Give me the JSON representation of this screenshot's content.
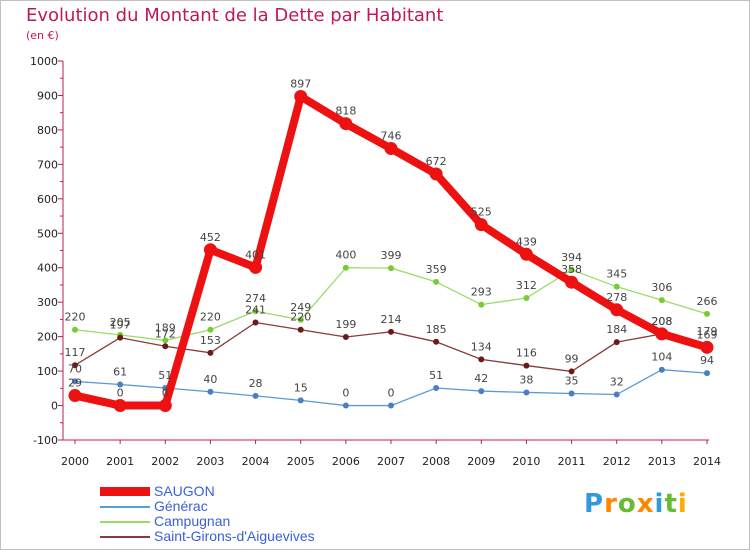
{
  "chart_data": {
    "type": "line",
    "title": "Evolution du Montant de la Dette par Habitant",
    "subtitle": "(en €)",
    "x": [
      "2000",
      "2001",
      "2002",
      "2003",
      "2004",
      "2005",
      "2006",
      "2007",
      "2008",
      "2009",
      "2010",
      "2011",
      "2012",
      "2013",
      "2014"
    ],
    "yticks": [
      "-100",
      "0",
      "100",
      "200",
      "300",
      "400",
      "500",
      "600",
      "700",
      "800",
      "900",
      "1000"
    ],
    "ylim": [
      -100,
      1000
    ],
    "grid": false,
    "legend_position": "bottom-left",
    "series": [
      {
        "name": "SAUGON",
        "color": "#ee1111",
        "emphasis": true,
        "values": [
          29,
          0,
          0,
          452,
          401,
          897,
          818,
          746,
          672,
          525,
          439,
          358,
          278,
          208,
          169
        ],
        "labels": [
          "29",
          "0",
          "0",
          "452",
          "401",
          "897",
          "818",
          "746",
          "672",
          "525",
          "439",
          "358",
          "278",
          "208",
          "169"
        ]
      },
      {
        "name": "Générac",
        "color": "#5b9bd5",
        "marker": "#4a7fc0",
        "values": [
          70,
          61,
          51,
          40,
          28,
          15,
          0,
          0,
          51,
          42,
          38,
          35,
          32,
          104,
          94
        ],
        "labels": [
          "70",
          "61",
          "51",
          "40",
          "28",
          "15",
          "0",
          "0",
          "51",
          "42",
          "38",
          "35",
          "32",
          "104",
          "94"
        ]
      },
      {
        "name": "Campugnan",
        "color": "#99dd66",
        "marker": "#77cc33",
        "values": [
          220,
          205,
          189,
          220,
          274,
          249,
          400,
          399,
          359,
          293,
          312,
          394,
          345,
          306,
          266
        ],
        "labels": [
          "220",
          "205",
          "189",
          "220",
          "274",
          "249",
          "400",
          "399",
          "359",
          "293",
          "312",
          "394",
          "345",
          "306",
          "266"
        ]
      },
      {
        "name": "Saint-Girons-d'Aiguevives",
        "color": "#8b3a3a",
        "marker": "#6b1a1a",
        "values": [
          117,
          197,
          172,
          153,
          241,
          220,
          199,
          214,
          185,
          134,
          116,
          99,
          184,
          208,
          179
        ],
        "labels": [
          "117",
          "197",
          "172",
          "153",
          "241",
          "220",
          "199",
          "214",
          "185",
          "134",
          "116",
          "99",
          "184",
          "208",
          "179"
        ]
      }
    ]
  },
  "brand": {
    "letters": [
      "P",
      "r",
      "o",
      "x",
      "i",
      "t",
      "i"
    ],
    "colors": [
      "#3399dd",
      "#ff8800",
      "#66bb33",
      "#ff8800",
      "#3399dd",
      "#66bb33",
      "#ffaa00"
    ]
  }
}
